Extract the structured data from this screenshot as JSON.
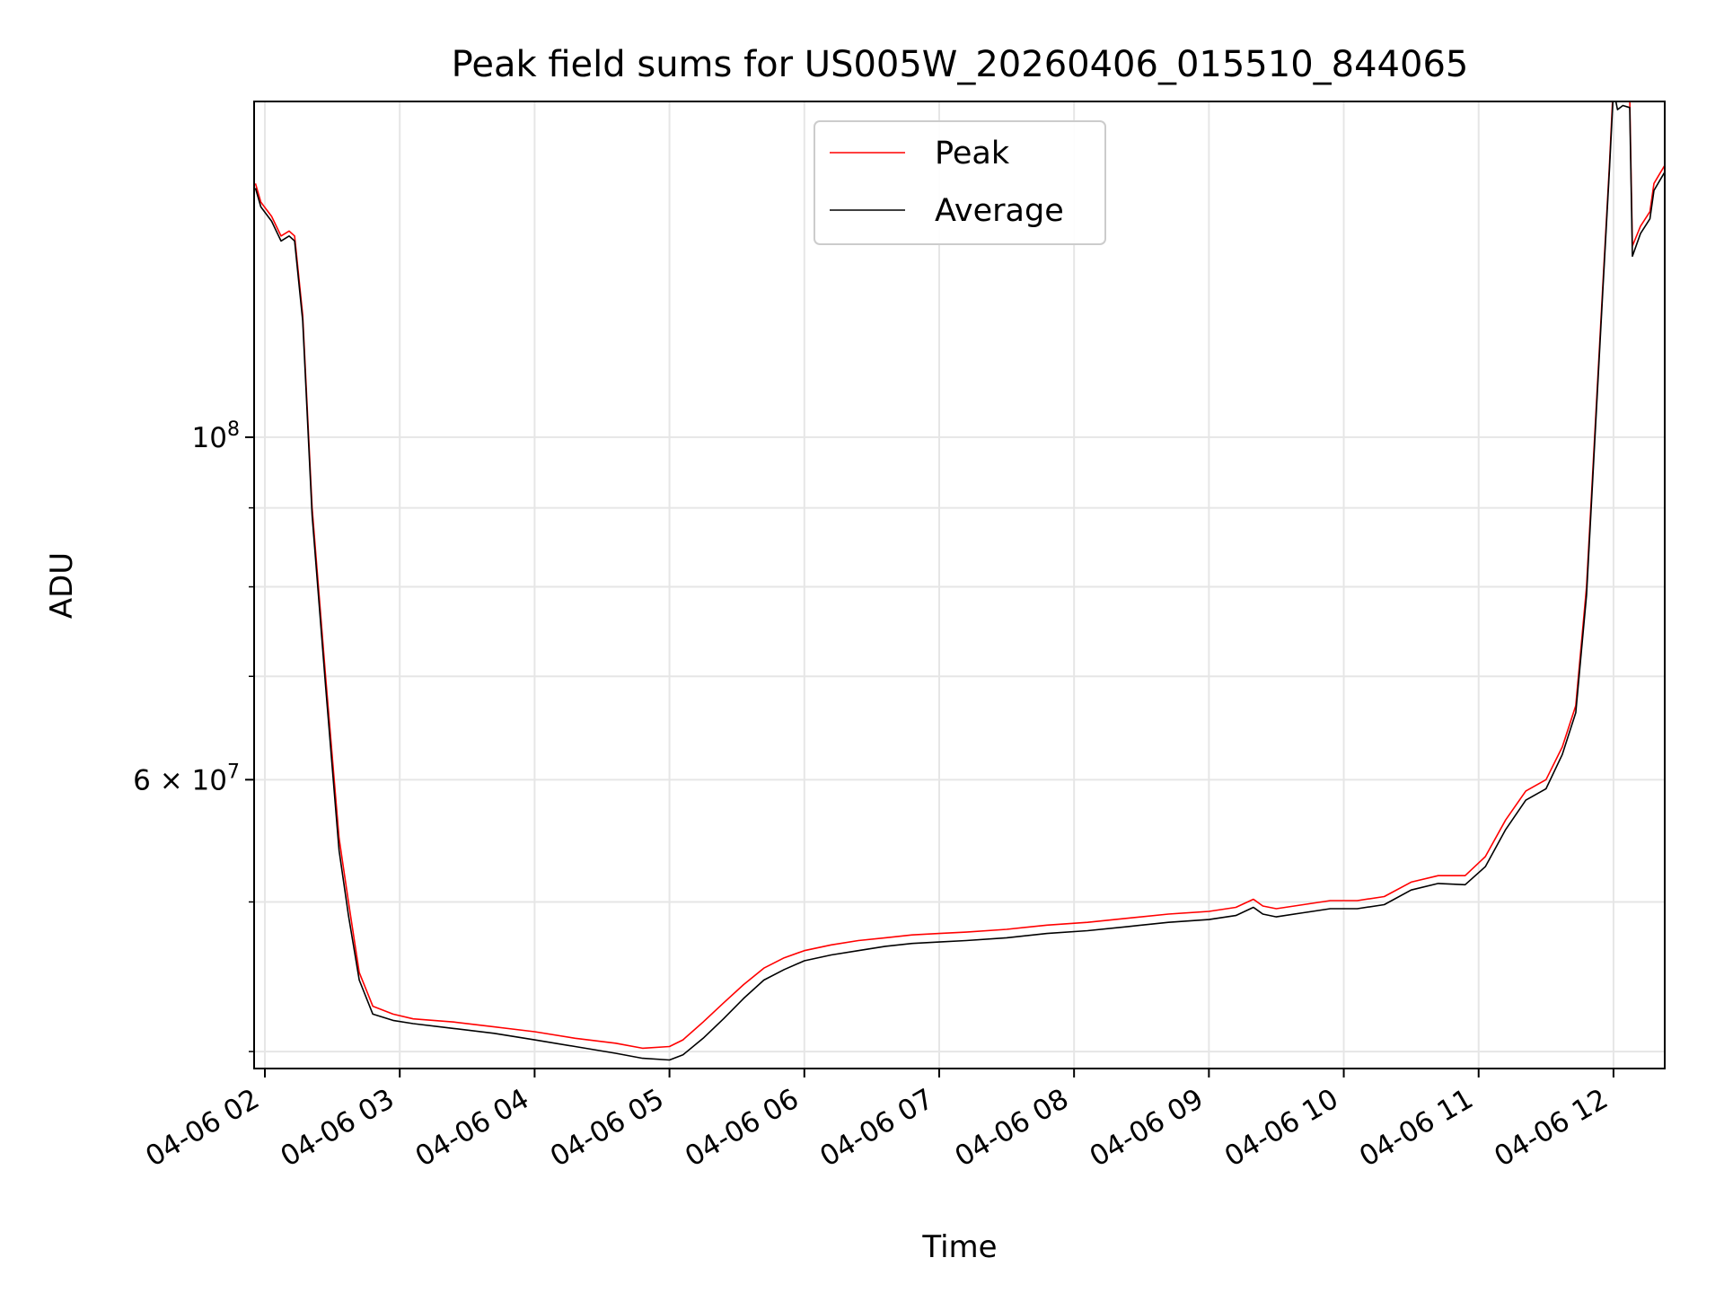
{
  "chart_data": {
    "type": "line",
    "title": "Peak field sums for US005W_20260406_015510_844065",
    "xlabel": "Time",
    "ylabel": "ADU",
    "y_scale": "log",
    "grid": true,
    "legend_position": "top-center",
    "xlim_hours": [
      1.92,
      12.38
    ],
    "ylim": [
      39000000,
      165000000
    ],
    "x_ticks": [
      {
        "hour": 2,
        "label": "04-06 02"
      },
      {
        "hour": 3,
        "label": "04-06 03"
      },
      {
        "hour": 4,
        "label": "04-06 04"
      },
      {
        "hour": 5,
        "label": "04-06 05"
      },
      {
        "hour": 6,
        "label": "04-06 06"
      },
      {
        "hour": 7,
        "label": "04-06 07"
      },
      {
        "hour": 8,
        "label": "04-06 08"
      },
      {
        "hour": 9,
        "label": "04-06 09"
      },
      {
        "hour": 10,
        "label": "04-06 10"
      },
      {
        "hour": 11,
        "label": "04-06 11"
      },
      {
        "hour": 12,
        "label": "04-06 12"
      }
    ],
    "y_major_ticks": [
      {
        "value": 100000000,
        "base": "10",
        "exp": "8"
      },
      {
        "value": 60000000,
        "base": "6 × 10",
        "exp": "7"
      }
    ],
    "y_minor_ticks": [
      40000000,
      50000000,
      70000000,
      80000000,
      90000000
    ],
    "series": [
      {
        "name": "Peak",
        "color": "#ff0000",
        "x": [
          1.93,
          1.97,
          2.05,
          2.12,
          2.18,
          2.22,
          2.28,
          2.35,
          2.45,
          2.55,
          2.62,
          2.7,
          2.8,
          2.95,
          3.1,
          3.4,
          3.7,
          4.0,
          4.3,
          4.6,
          4.8,
          5.0,
          5.1,
          5.25,
          5.4,
          5.55,
          5.7,
          5.85,
          6.0,
          6.2,
          6.4,
          6.6,
          6.8,
          7.0,
          7.2,
          7.5,
          7.8,
          8.1,
          8.4,
          8.7,
          9.0,
          9.2,
          9.33,
          9.4,
          9.5,
          9.7,
          9.9,
          10.1,
          10.3,
          10.5,
          10.7,
          10.9,
          11.05,
          11.2,
          11.35,
          11.5,
          11.62,
          11.72,
          11.8,
          11.86,
          11.92,
          11.97,
          12.0,
          12.03,
          12.07,
          12.12,
          12.14,
          12.2,
          12.27,
          12.3,
          12.34,
          12.38
        ],
        "values": [
          146000000,
          142000000,
          139000000,
          135000000,
          136000000,
          135000000,
          120000000,
          90000000,
          70000000,
          55000000,
          50000000,
          45000000,
          42800000,
          42300000,
          42000000,
          41800000,
          41500000,
          41200000,
          40800000,
          40500000,
          40200000,
          40300000,
          40700000,
          41800000,
          43000000,
          44200000,
          45300000,
          46000000,
          46500000,
          46900000,
          47200000,
          47400000,
          47600000,
          47700000,
          47800000,
          48000000,
          48300000,
          48500000,
          48800000,
          49100000,
          49300000,
          49600000,
          50200000,
          49700000,
          49500000,
          49800000,
          50100000,
          50100000,
          50400000,
          51500000,
          52000000,
          52000000,
          53500000,
          56500000,
          59000000,
          60000000,
          63000000,
          67000000,
          80000000,
          100000000,
          125000000,
          150000000,
          170000000,
          166000000,
          166500000,
          166000000,
          133000000,
          137000000,
          140000000,
          146000000,
          148000000,
          150000000
        ]
      },
      {
        "name": "Average",
        "color": "#000000",
        "x": [
          1.93,
          1.97,
          2.05,
          2.12,
          2.18,
          2.22,
          2.28,
          2.35,
          2.45,
          2.55,
          2.62,
          2.7,
          2.8,
          2.95,
          3.1,
          3.4,
          3.7,
          4.0,
          4.3,
          4.6,
          4.8,
          5.0,
          5.1,
          5.25,
          5.4,
          5.55,
          5.7,
          5.85,
          6.0,
          6.2,
          6.4,
          6.6,
          6.8,
          7.0,
          7.2,
          7.5,
          7.8,
          8.1,
          8.4,
          8.7,
          9.0,
          9.2,
          9.33,
          9.4,
          9.5,
          9.7,
          9.9,
          10.1,
          10.3,
          10.5,
          10.7,
          10.9,
          11.05,
          11.2,
          11.35,
          11.5,
          11.62,
          11.72,
          11.8,
          11.86,
          11.92,
          11.97,
          12.0,
          12.03,
          12.07,
          12.12,
          12.14,
          12.2,
          12.27,
          12.3,
          12.34,
          12.38
        ],
        "values": [
          145000000,
          141000000,
          138000000,
          134000000,
          135000000,
          134000000,
          119000000,
          89000000,
          69000000,
          54000000,
          49000000,
          44500000,
          42300000,
          41900000,
          41700000,
          41400000,
          41100000,
          40700000,
          40300000,
          39900000,
          39600000,
          39500000,
          39800000,
          40800000,
          42000000,
          43300000,
          44500000,
          45200000,
          45800000,
          46200000,
          46500000,
          46800000,
          47000000,
          47100000,
          47200000,
          47400000,
          47700000,
          47900000,
          48200000,
          48500000,
          48700000,
          49000000,
          49600000,
          49100000,
          48900000,
          49200000,
          49500000,
          49500000,
          49800000,
          50900000,
          51400000,
          51300000,
          52700000,
          55700000,
          58200000,
          59200000,
          62300000,
          66300000,
          79000000,
          99000000,
          124000000,
          149000000,
          168000000,
          163000000,
          164000000,
          163500000,
          131000000,
          135500000,
          138500000,
          144500000,
          146500000,
          148500000
        ]
      }
    ]
  }
}
